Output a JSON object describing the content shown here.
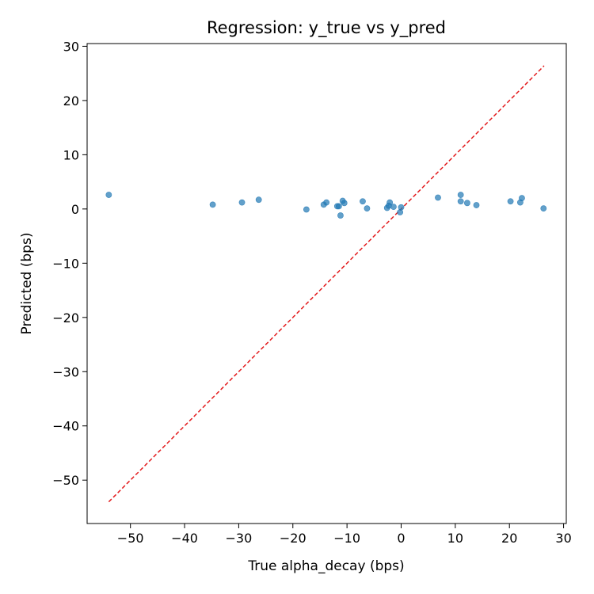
{
  "chart_data": {
    "type": "scatter",
    "title": "Regression: y_true vs y_pred",
    "xlabel": "True alpha_decay (bps)",
    "ylabel": "Predicted (bps)",
    "xlim": [
      -58,
      30.5
    ],
    "ylim": [
      -58,
      30.5
    ],
    "xticks": [
      -50,
      -40,
      -30,
      -20,
      -10,
      0,
      10,
      20,
      30
    ],
    "yticks": [
      -50,
      -40,
      -30,
      -20,
      -10,
      0,
      10,
      20,
      30
    ],
    "grid": false,
    "reference_line": {
      "from": [
        -54,
        -54
      ],
      "to": [
        26.4,
        26.4
      ],
      "color": "#e31a1c",
      "style": "dashed"
    },
    "point_color": "#1f77b4",
    "points": [
      {
        "x": -54.0,
        "y": 2.6
      },
      {
        "x": -34.8,
        "y": 0.8
      },
      {
        "x": -29.4,
        "y": 1.2
      },
      {
        "x": -26.3,
        "y": 1.7
      },
      {
        "x": -17.5,
        "y": -0.1
      },
      {
        "x": -14.3,
        "y": 0.8
      },
      {
        "x": -13.8,
        "y": 1.2
      },
      {
        "x": -11.8,
        "y": 0.5
      },
      {
        "x": -11.5,
        "y": 0.5
      },
      {
        "x": -11.2,
        "y": -1.2
      },
      {
        "x": -10.8,
        "y": 1.5
      },
      {
        "x": -10.5,
        "y": 1.1
      },
      {
        "x": -7.1,
        "y": 1.4
      },
      {
        "x": -6.3,
        "y": 0.1
      },
      {
        "x": -2.6,
        "y": 0.2
      },
      {
        "x": -2.3,
        "y": 0.6
      },
      {
        "x": -2.1,
        "y": 1.2
      },
      {
        "x": -1.4,
        "y": 0.4
      },
      {
        "x": -0.2,
        "y": -0.6
      },
      {
        "x": 0.0,
        "y": 0.3
      },
      {
        "x": 6.8,
        "y": 2.1
      },
      {
        "x": 11.0,
        "y": 2.6
      },
      {
        "x": 11.0,
        "y": 1.4
      },
      {
        "x": 12.2,
        "y": 1.1
      },
      {
        "x": 13.9,
        "y": 0.7
      },
      {
        "x": 20.2,
        "y": 1.4
      },
      {
        "x": 22.0,
        "y": 1.2
      },
      {
        "x": 22.3,
        "y": 2.0
      },
      {
        "x": 26.3,
        "y": 0.1
      }
    ]
  }
}
